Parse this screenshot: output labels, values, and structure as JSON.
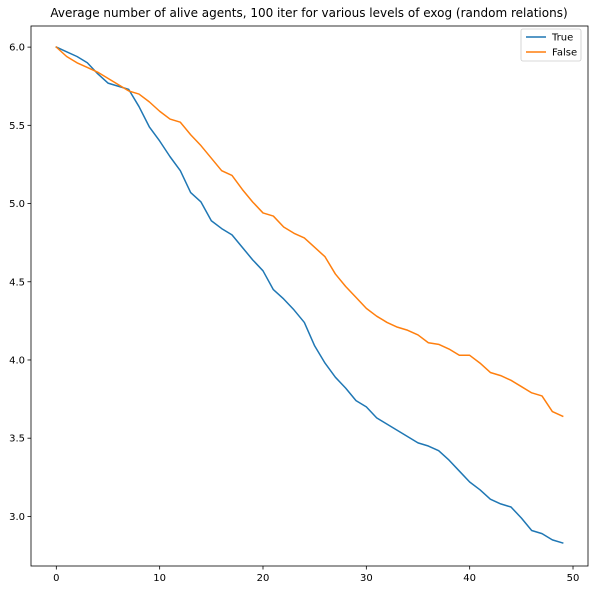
{
  "chart_data": {
    "type": "line",
    "title": "Average number of alive agents, 100 iter for various levels of exog  (random relations)",
    "xlabel": "",
    "ylabel": "",
    "xlim": [
      -2.45,
      51.45
    ],
    "ylim": [
      2.683,
      6.135
    ],
    "xticks": [
      0,
      10,
      20,
      30,
      40,
      50
    ],
    "yticks": [
      3.0,
      3.5,
      4.0,
      4.5,
      5.0,
      5.5,
      6.0
    ],
    "xtick_labels": [
      "0",
      "10",
      "20",
      "30",
      "40",
      "50"
    ],
    "ytick_labels": [
      "3.0",
      "3.5",
      "4.0",
      "4.5",
      "5.0",
      "5.5",
      "6.0"
    ],
    "grid": false,
    "legend_position": "top-right",
    "x": [
      0,
      1,
      2,
      3,
      4,
      5,
      6,
      7,
      8,
      9,
      10,
      11,
      12,
      13,
      14,
      15,
      16,
      17,
      18,
      19,
      20,
      21,
      22,
      23,
      24,
      25,
      26,
      27,
      28,
      29,
      30,
      31,
      32,
      33,
      34,
      35,
      36,
      37,
      38,
      39,
      40,
      41,
      42,
      43,
      44,
      45,
      46,
      47,
      48,
      49
    ],
    "series": [
      {
        "name": "True",
        "color": "#1f77b4",
        "values": [
          6.0,
          5.97,
          5.94,
          5.9,
          5.83,
          5.77,
          5.75,
          5.73,
          5.62,
          5.49,
          5.4,
          5.3,
          5.21,
          5.07,
          5.01,
          4.89,
          4.84,
          4.8,
          4.72,
          4.64,
          4.57,
          4.45,
          4.39,
          4.32,
          4.24,
          4.09,
          3.98,
          3.89,
          3.82,
          3.74,
          3.7,
          3.63,
          3.59,
          3.55,
          3.51,
          3.47,
          3.45,
          3.42,
          3.36,
          3.29,
          3.22,
          3.17,
          3.11,
          3.08,
          3.06,
          2.99,
          2.91,
          2.89,
          2.85,
          2.83
        ]
      },
      {
        "name": "False",
        "color": "#ff7f0e",
        "values": [
          6.0,
          5.94,
          5.9,
          5.87,
          5.84,
          5.8,
          5.76,
          5.72,
          5.7,
          5.65,
          5.59,
          5.54,
          5.52,
          5.44,
          5.37,
          5.29,
          5.21,
          5.18,
          5.09,
          5.01,
          4.94,
          4.92,
          4.85,
          4.81,
          4.78,
          4.72,
          4.66,
          4.55,
          4.47,
          4.4,
          4.33,
          4.28,
          4.24,
          4.21,
          4.19,
          4.16,
          4.11,
          4.1,
          4.07,
          4.03,
          4.03,
          3.98,
          3.92,
          3.9,
          3.87,
          3.83,
          3.79,
          3.77,
          3.67,
          3.64
        ]
      }
    ]
  }
}
